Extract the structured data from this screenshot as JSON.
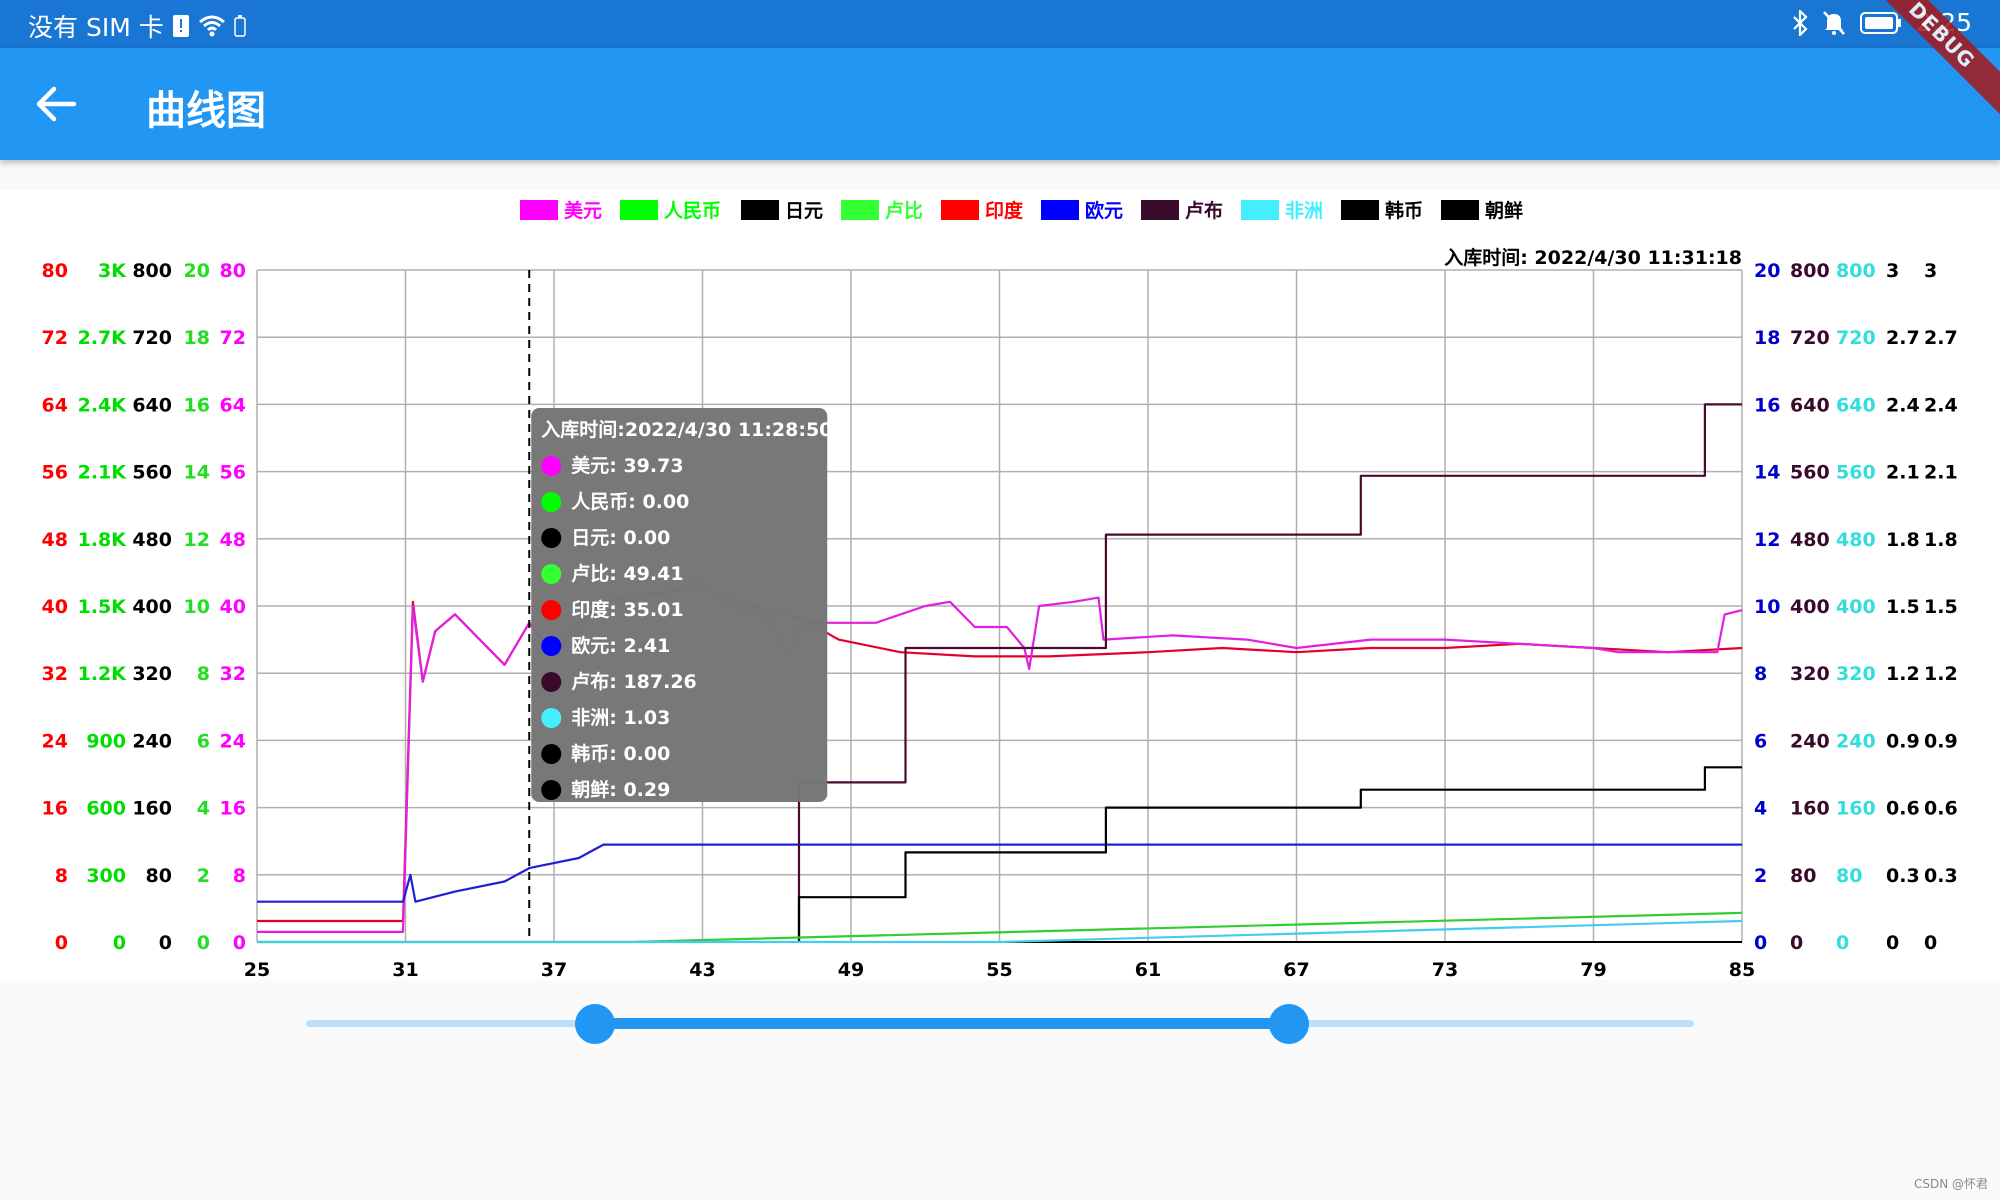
{
  "status_bar": {
    "carrier": "没有 SIM 卡",
    "time": "2:25"
  },
  "app_bar": {
    "title": "曲线图",
    "debug_banner": "DEBUG"
  },
  "watermark": "CSDN @怀君",
  "colors": {
    "appbar": "#2196f3",
    "status": "#1976d2",
    "slider": "#2196f3",
    "slider_inactive": "#bbdefb",
    "tooltip_bg": "#757575"
  },
  "slider": {
    "min": 25,
    "max": 85,
    "start": 37.5,
    "end": 67.5
  },
  "chart_data": {
    "type": "line",
    "top_right_label": "入库时间:  2022/4/30 11:31:18",
    "x_ticks": [
      "25",
      "31",
      "37",
      "43",
      "49",
      "55",
      "61",
      "67",
      "73",
      "79",
      "85"
    ],
    "xlim": [
      25,
      85
    ],
    "left_axes": [
      {
        "color": "#ff0000",
        "labels": [
          "0",
          "8",
          "16",
          "24",
          "32",
          "40",
          "48",
          "56",
          "64",
          "72",
          "80"
        ]
      },
      {
        "color": "#00dd00",
        "labels": [
          "0",
          "300",
          "600",
          "900",
          "1.2K",
          "1.5K",
          "1.8K",
          "2.1K",
          "2.4K",
          "2.7K",
          "3K"
        ]
      },
      {
        "color": "#000000",
        "labels": [
          "0",
          "80",
          "160",
          "240",
          "320",
          "400",
          "480",
          "560",
          "640",
          "720",
          "800"
        ]
      },
      {
        "color": "#22dd22",
        "labels": [
          "0",
          "2",
          "4",
          "6",
          "8",
          "10",
          "12",
          "14",
          "16",
          "18",
          "20"
        ]
      },
      {
        "color": "#ff00ff",
        "labels": [
          "0",
          "8",
          "16",
          "24",
          "32",
          "40",
          "48",
          "56",
          "64",
          "72",
          "80"
        ]
      }
    ],
    "right_axes": [
      {
        "color": "#0000cc",
        "labels": [
          "0",
          "2",
          "4",
          "6",
          "8",
          "10",
          "12",
          "14",
          "16",
          "18",
          "20"
        ]
      },
      {
        "color": "#3a0a2a",
        "labels": [
          "0",
          "80",
          "160",
          "240",
          "320",
          "400",
          "480",
          "560",
          "640",
          "720",
          "800"
        ]
      },
      {
        "color": "#33dddd",
        "labels": [
          "0",
          "80",
          "160",
          "240",
          "320",
          "400",
          "480",
          "560",
          "640",
          "720",
          "800"
        ]
      },
      {
        "color": "#000000",
        "labels": [
          "0",
          "0.3",
          "0.6",
          "0.9",
          "1.2",
          "1.5",
          "1.8",
          "2.1",
          "2.4",
          "2.7",
          "3"
        ]
      },
      {
        "color": "#000000",
        "labels": [
          "0",
          "0.3",
          "0.6",
          "0.9",
          "1.2",
          "1.5",
          "1.8",
          "2.1",
          "2.4",
          "2.7",
          "3"
        ]
      }
    ],
    "legend": [
      {
        "name": "美元",
        "color": "#ff00ff"
      },
      {
        "name": "人民币",
        "color": "#00ff00"
      },
      {
        "name": "日元",
        "color": "#000000"
      },
      {
        "name": "卢比",
        "color": "#33ff33"
      },
      {
        "name": "印度",
        "color": "#ff0000"
      },
      {
        "name": "欧元",
        "color": "#0000ff"
      },
      {
        "name": "卢布",
        "color": "#3a0a2a"
      },
      {
        "name": "非洲",
        "color": "#44eeff"
      },
      {
        "name": "韩币",
        "color": "#000000"
      },
      {
        "name": "朝鲜",
        "color": "#000000"
      }
    ],
    "series": [
      {
        "name": "印度",
        "color": "#e4002b",
        "axis": 0,
        "points": [
          [
            25,
            2.5
          ],
          [
            30.9,
            2.5
          ],
          [
            31.3,
            40.5
          ],
          [
            31.7,
            31
          ],
          [
            32.2,
            37
          ],
          [
            33,
            39
          ],
          [
            34,
            36
          ],
          [
            35,
            33
          ],
          [
            36,
            38
          ],
          [
            37,
            34
          ],
          [
            38,
            38
          ],
          [
            39,
            40.5
          ],
          [
            41,
            41.5
          ],
          [
            43,
            42
          ],
          [
            45,
            40
          ],
          [
            47,
            38.5
          ],
          [
            48.5,
            36
          ],
          [
            51,
            34.5
          ],
          [
            54,
            34
          ],
          [
            57,
            34
          ],
          [
            61,
            34.5
          ],
          [
            64,
            35
          ],
          [
            67,
            34.5
          ],
          [
            70,
            35
          ],
          [
            73,
            35
          ],
          [
            76,
            35.5
          ],
          [
            79,
            35
          ],
          [
            82,
            34.5
          ],
          [
            85,
            35
          ]
        ]
      },
      {
        "name": "美元",
        "color": "#e020e0",
        "axis": 4,
        "points": [
          [
            25,
            1.2
          ],
          [
            30.9,
            1.2
          ],
          [
            31.3,
            40
          ],
          [
            31.7,
            31
          ],
          [
            32.2,
            37
          ],
          [
            33,
            39
          ],
          [
            34,
            36
          ],
          [
            35,
            33
          ],
          [
            36,
            38
          ],
          [
            37,
            34
          ],
          [
            38,
            38
          ],
          [
            40,
            40.5
          ],
          [
            42,
            42
          ],
          [
            43,
            43
          ],
          [
            44,
            40
          ],
          [
            45.5,
            39
          ],
          [
            46.5,
            34
          ],
          [
            47,
            38
          ],
          [
            48,
            38
          ],
          [
            50,
            38
          ],
          [
            52,
            40
          ],
          [
            53,
            40.5
          ],
          [
            54,
            37.5
          ],
          [
            55.3,
            37.5
          ],
          [
            56,
            35
          ],
          [
            56.2,
            32.5
          ],
          [
            56.6,
            40
          ],
          [
            58,
            40.5
          ],
          [
            59,
            41
          ],
          [
            59.2,
            36
          ],
          [
            62,
            36.5
          ],
          [
            65,
            36
          ],
          [
            67,
            35
          ],
          [
            70,
            36
          ],
          [
            73,
            36
          ],
          [
            76,
            35.5
          ],
          [
            79,
            35
          ],
          [
            80,
            34.5
          ],
          [
            82,
            34.5
          ],
          [
            84,
            34.5
          ],
          [
            84.3,
            39
          ],
          [
            85,
            39.5
          ]
        ]
      },
      {
        "name": "欧元",
        "color": "#2020d0",
        "axis": 5,
        "points": [
          [
            25,
            1.2
          ],
          [
            30.9,
            1.2
          ],
          [
            31.2,
            2
          ],
          [
            31.4,
            1.2
          ],
          [
            33,
            1.5
          ],
          [
            35,
            1.8
          ],
          [
            36,
            2.2
          ],
          [
            38,
            2.5
          ],
          [
            39,
            2.9
          ],
          [
            42,
            2.9
          ],
          [
            50,
            2.9
          ],
          [
            60,
            2.9
          ],
          [
            70,
            2.9
          ],
          [
            85,
            2.9
          ]
        ]
      },
      {
        "name": "卢布",
        "color": "#4a0a30",
        "axis": 6,
        "points": [
          [
            46.9,
            0
          ],
          [
            46.9,
            190
          ],
          [
            51.2,
            190
          ],
          [
            51.2,
            350
          ],
          [
            59.3,
            350
          ],
          [
            59.3,
            485
          ],
          [
            69.6,
            485
          ],
          [
            69.6,
            555
          ],
          [
            83.5,
            555
          ],
          [
            83.5,
            640
          ],
          [
            85,
            640
          ]
        ]
      },
      {
        "name": "韩币",
        "color": "#000000",
        "axis": 8,
        "points": [
          [
            46.9,
            0
          ],
          [
            46.9,
            0.2
          ],
          [
            51.2,
            0.2
          ],
          [
            51.2,
            0.4
          ],
          [
            59.3,
            0.4
          ],
          [
            59.3,
            0.6
          ],
          [
            69.6,
            0.6
          ],
          [
            69.6,
            0.68
          ],
          [
            83.5,
            0.68
          ],
          [
            83.5,
            0.78
          ],
          [
            85,
            0.78
          ]
        ]
      },
      {
        "name": "人民币",
        "color": "#33cc33",
        "axis": 1,
        "points": [
          [
            25,
            0
          ],
          [
            40,
            0
          ],
          [
            85,
            130
          ]
        ]
      },
      {
        "name": "非洲",
        "color": "#44ccee",
        "axis": 7,
        "points": [
          [
            25,
            0
          ],
          [
            55,
            0
          ],
          [
            85,
            25
          ]
        ]
      }
    ],
    "crosshair_x": 36,
    "tooltip": {
      "title": "入库时间:2022/4/30 11:28:50",
      "items": [
        {
          "label": "美元:  39.73",
          "color": "#ff00ff"
        },
        {
          "label": "人民币:  0.00",
          "color": "#00ff00"
        },
        {
          "label": "日元:  0.00",
          "color": "#000000"
        },
        {
          "label": "卢比:  49.41",
          "color": "#33ff33"
        },
        {
          "label": "印度:  35.01",
          "color": "#ff0000"
        },
        {
          "label": "欧元:  2.41",
          "color": "#0000ff"
        },
        {
          "label": "卢布:  187.26",
          "color": "#3a0a2a"
        },
        {
          "label": "非洲:  1.03",
          "color": "#44eeff"
        },
        {
          "label": "韩币:  0.00",
          "color": "#000000"
        },
        {
          "label": "朝鲜:  0.29",
          "color": "#000000"
        }
      ]
    }
  }
}
